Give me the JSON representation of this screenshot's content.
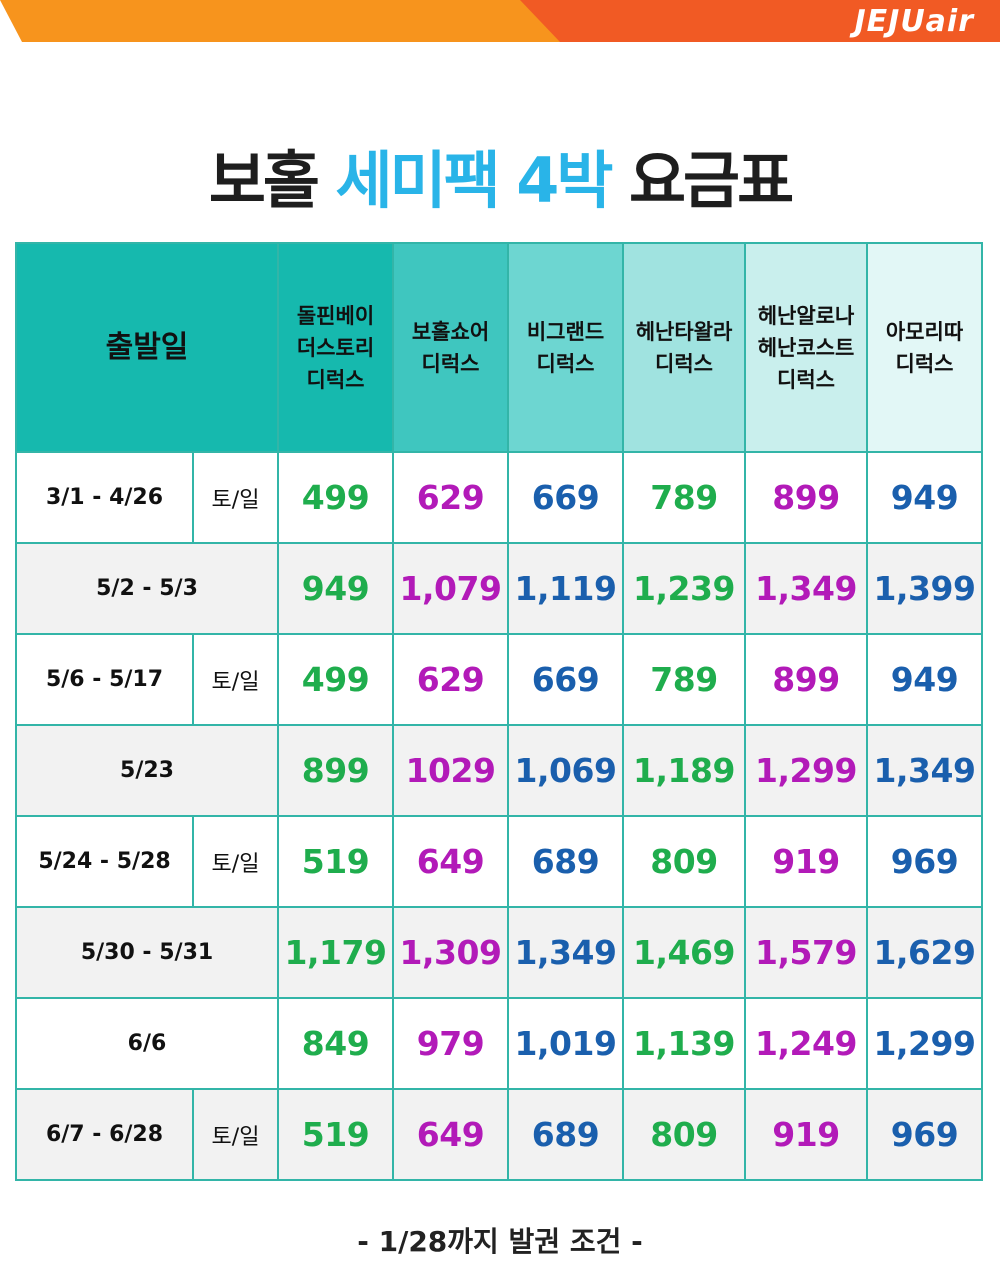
{
  "brand": {
    "logo": "JEJUair",
    "colors": {
      "orange_light": "#f7941d",
      "orange_dark": "#f15a24",
      "title_accent": "#29b4e8",
      "green": "#1fad4d",
      "magenta": "#b21ab8",
      "blue": "#1a5fad"
    }
  },
  "title": {
    "part1": "보홀",
    "accent": "세미팩 4박",
    "part2": "요금표"
  },
  "table": {
    "date_header": "출발일",
    "columns": [
      "돌핀베이\n더스토리\n디럭스",
      "보홀쇼어\n디럭스",
      "비그랜드\n디럭스",
      "헤난타왈라\n디럭스",
      "헤난알로나\n헤난코스트\n디럭스",
      "아모리따\n디럭스"
    ],
    "rows": [
      {
        "date": "3/1 - 4/26",
        "day": "토/일",
        "prices": [
          "499",
          "629",
          "669",
          "789",
          "899",
          "949"
        ]
      },
      {
        "date": "5/2 - 5/3",
        "day": "",
        "prices": [
          "949",
          "1,079",
          "1,119",
          "1,239",
          "1,349",
          "1,399"
        ]
      },
      {
        "date": "5/6 - 5/17",
        "day": "토/일",
        "prices": [
          "499",
          "629",
          "669",
          "789",
          "899",
          "949"
        ]
      },
      {
        "date": "5/23",
        "day": "",
        "prices": [
          "899",
          "1029",
          "1,069",
          "1,189",
          "1,299",
          "1,349"
        ]
      },
      {
        "date": "5/24 - 5/28",
        "day": "토/일",
        "prices": [
          "519",
          "649",
          "689",
          "809",
          "919",
          "969"
        ]
      },
      {
        "date": "5/30 - 5/31",
        "day": "",
        "prices": [
          "1,179",
          "1,309",
          "1,349",
          "1,469",
          "1,579",
          "1,629"
        ]
      },
      {
        "date": "6/6",
        "day": "",
        "prices": [
          "849",
          "979",
          "1,019",
          "1,139",
          "1,249",
          "1,299"
        ]
      },
      {
        "date": "6/7 - 6/28",
        "day": "토/일",
        "prices": [
          "519",
          "649",
          "689",
          "809",
          "919",
          "969"
        ]
      }
    ]
  },
  "footnote": "- 1/28까지 발권 조건 -"
}
